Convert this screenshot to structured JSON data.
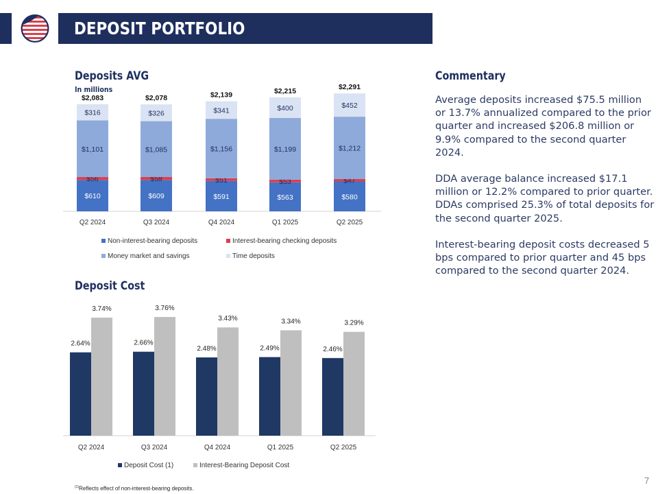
{
  "header": {
    "title": "DEPOSIT PORTFOLIO"
  },
  "deposits_chart": {
    "title": "Deposits AVG",
    "subtitle": "In millions"
  },
  "cost_chart": {
    "title": "Deposit Cost"
  },
  "commentary": {
    "title": "Commentary",
    "paragraphs": [
      "Average deposits increased $75.5 million or 13.7% annualized compared to the prior quarter and increased $206.8 million or 9.9% compared to the second quarter 2024.",
      "DDA average balance increased $17.1 million or 12.2% compared to prior quarter. DDAs comprised 25.3% of total deposits for the second quarter 2025.",
      "Interest-bearing deposit costs decreased 5 bps compared to prior quarter and 45 bps compared to the second quarter 2024."
    ]
  },
  "footnote": {
    "marker": "(1)",
    "text": "Reflects effect of non-interest-bearing deposits."
  },
  "page_number": "7",
  "chart_data": [
    {
      "type": "bar",
      "stacked": true,
      "title": "Deposits AVG",
      "subtitle": "In millions",
      "categories": [
        "Q2 2024",
        "Q3 2024",
        "Q4 2024",
        "Q1 2025",
        "Q2 2025"
      ],
      "totals": [
        2083,
        2078,
        2139,
        2215,
        2291
      ],
      "total_labels": [
        "$2,083",
        "$2,078",
        "$2,139",
        "$2,215",
        "$2,291"
      ],
      "series": [
        {
          "name": "Non-interest-bearing deposits",
          "color": "#4472c4",
          "text_color": "#ffffff",
          "values": [
            610,
            609,
            591,
            563,
            580
          ],
          "labels": [
            "$610",
            "$609",
            "$591",
            "$563",
            "$580"
          ]
        },
        {
          "name": "Interest-bearing checking deposits",
          "color": "#d9414f",
          "text_color": "#1e2f5e",
          "values": [
            56,
            58,
            51,
            53,
            47
          ],
          "labels": [
            "$56",
            "$58",
            "$51",
            "$53",
            "$47"
          ]
        },
        {
          "name": "Money market and savings",
          "color": "#8eaadb",
          "text_color": "#1e2f5e",
          "values": [
            1101,
            1085,
            1156,
            1199,
            1212
          ],
          "labels": [
            "$1,101",
            "$1,085",
            "$1,156",
            "$1,199",
            "$1,212"
          ]
        },
        {
          "name": "Time deposits",
          "color": "#dae3f3",
          "text_color": "#1e2f5e",
          "values": [
            316,
            326,
            341,
            400,
            452
          ],
          "labels": [
            "$316",
            "$326",
            "$341",
            "$400",
            "$452"
          ]
        }
      ],
      "legend": "bottom"
    },
    {
      "type": "bar",
      "title": "Deposit Cost",
      "categories": [
        "Q2 2024",
        "Q3 2024",
        "Q4 2024",
        "Q1 2025",
        "Q2 2025"
      ],
      "ylim": [
        0,
        4.0
      ],
      "series": [
        {
          "name": "Deposit Cost (1)",
          "color": "#1f3864",
          "values": [
            2.64,
            2.66,
            2.48,
            2.49,
            2.46
          ],
          "labels": [
            "2.64%",
            "2.66%",
            "2.48%",
            "2.49%",
            "2.46%"
          ]
        },
        {
          "name": "Interest-Bearing Deposit Cost",
          "color": "#bfbfbf",
          "values": [
            3.74,
            3.76,
            3.43,
            3.34,
            3.29
          ],
          "labels": [
            "3.74%",
            "3.76%",
            "3.43%",
            "3.34%",
            "3.29%"
          ]
        }
      ],
      "legend": "bottom"
    }
  ]
}
